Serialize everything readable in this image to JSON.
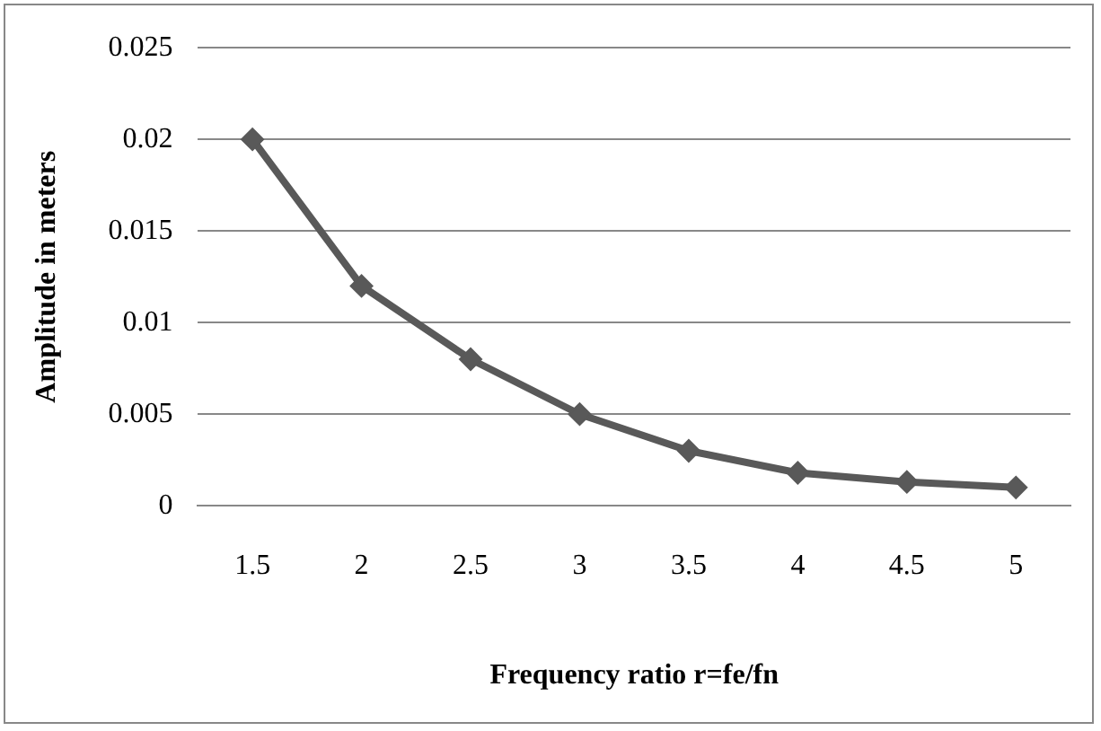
{
  "chart_data": {
    "type": "line",
    "xlabel": "Frequency ratio r=fe/fn",
    "ylabel": "Amplitude in meters",
    "categories": [
      "1.5",
      "2",
      "2.5",
      "3",
      "3.5",
      "4",
      "4.5",
      "5"
    ],
    "series": [
      {
        "color": "#595959",
        "values": [
          0.02,
          0.012,
          0.008,
          0.005,
          0.003,
          0.0018,
          0.0013,
          0.001
        ]
      }
    ],
    "ylim": [
      0,
      0.025
    ],
    "yticks": [
      0,
      0.005,
      0.01,
      0.015,
      0.02,
      0.025
    ],
    "grid": "y",
    "marker": "diamond",
    "line_style": "solid",
    "legend": false
  }
}
